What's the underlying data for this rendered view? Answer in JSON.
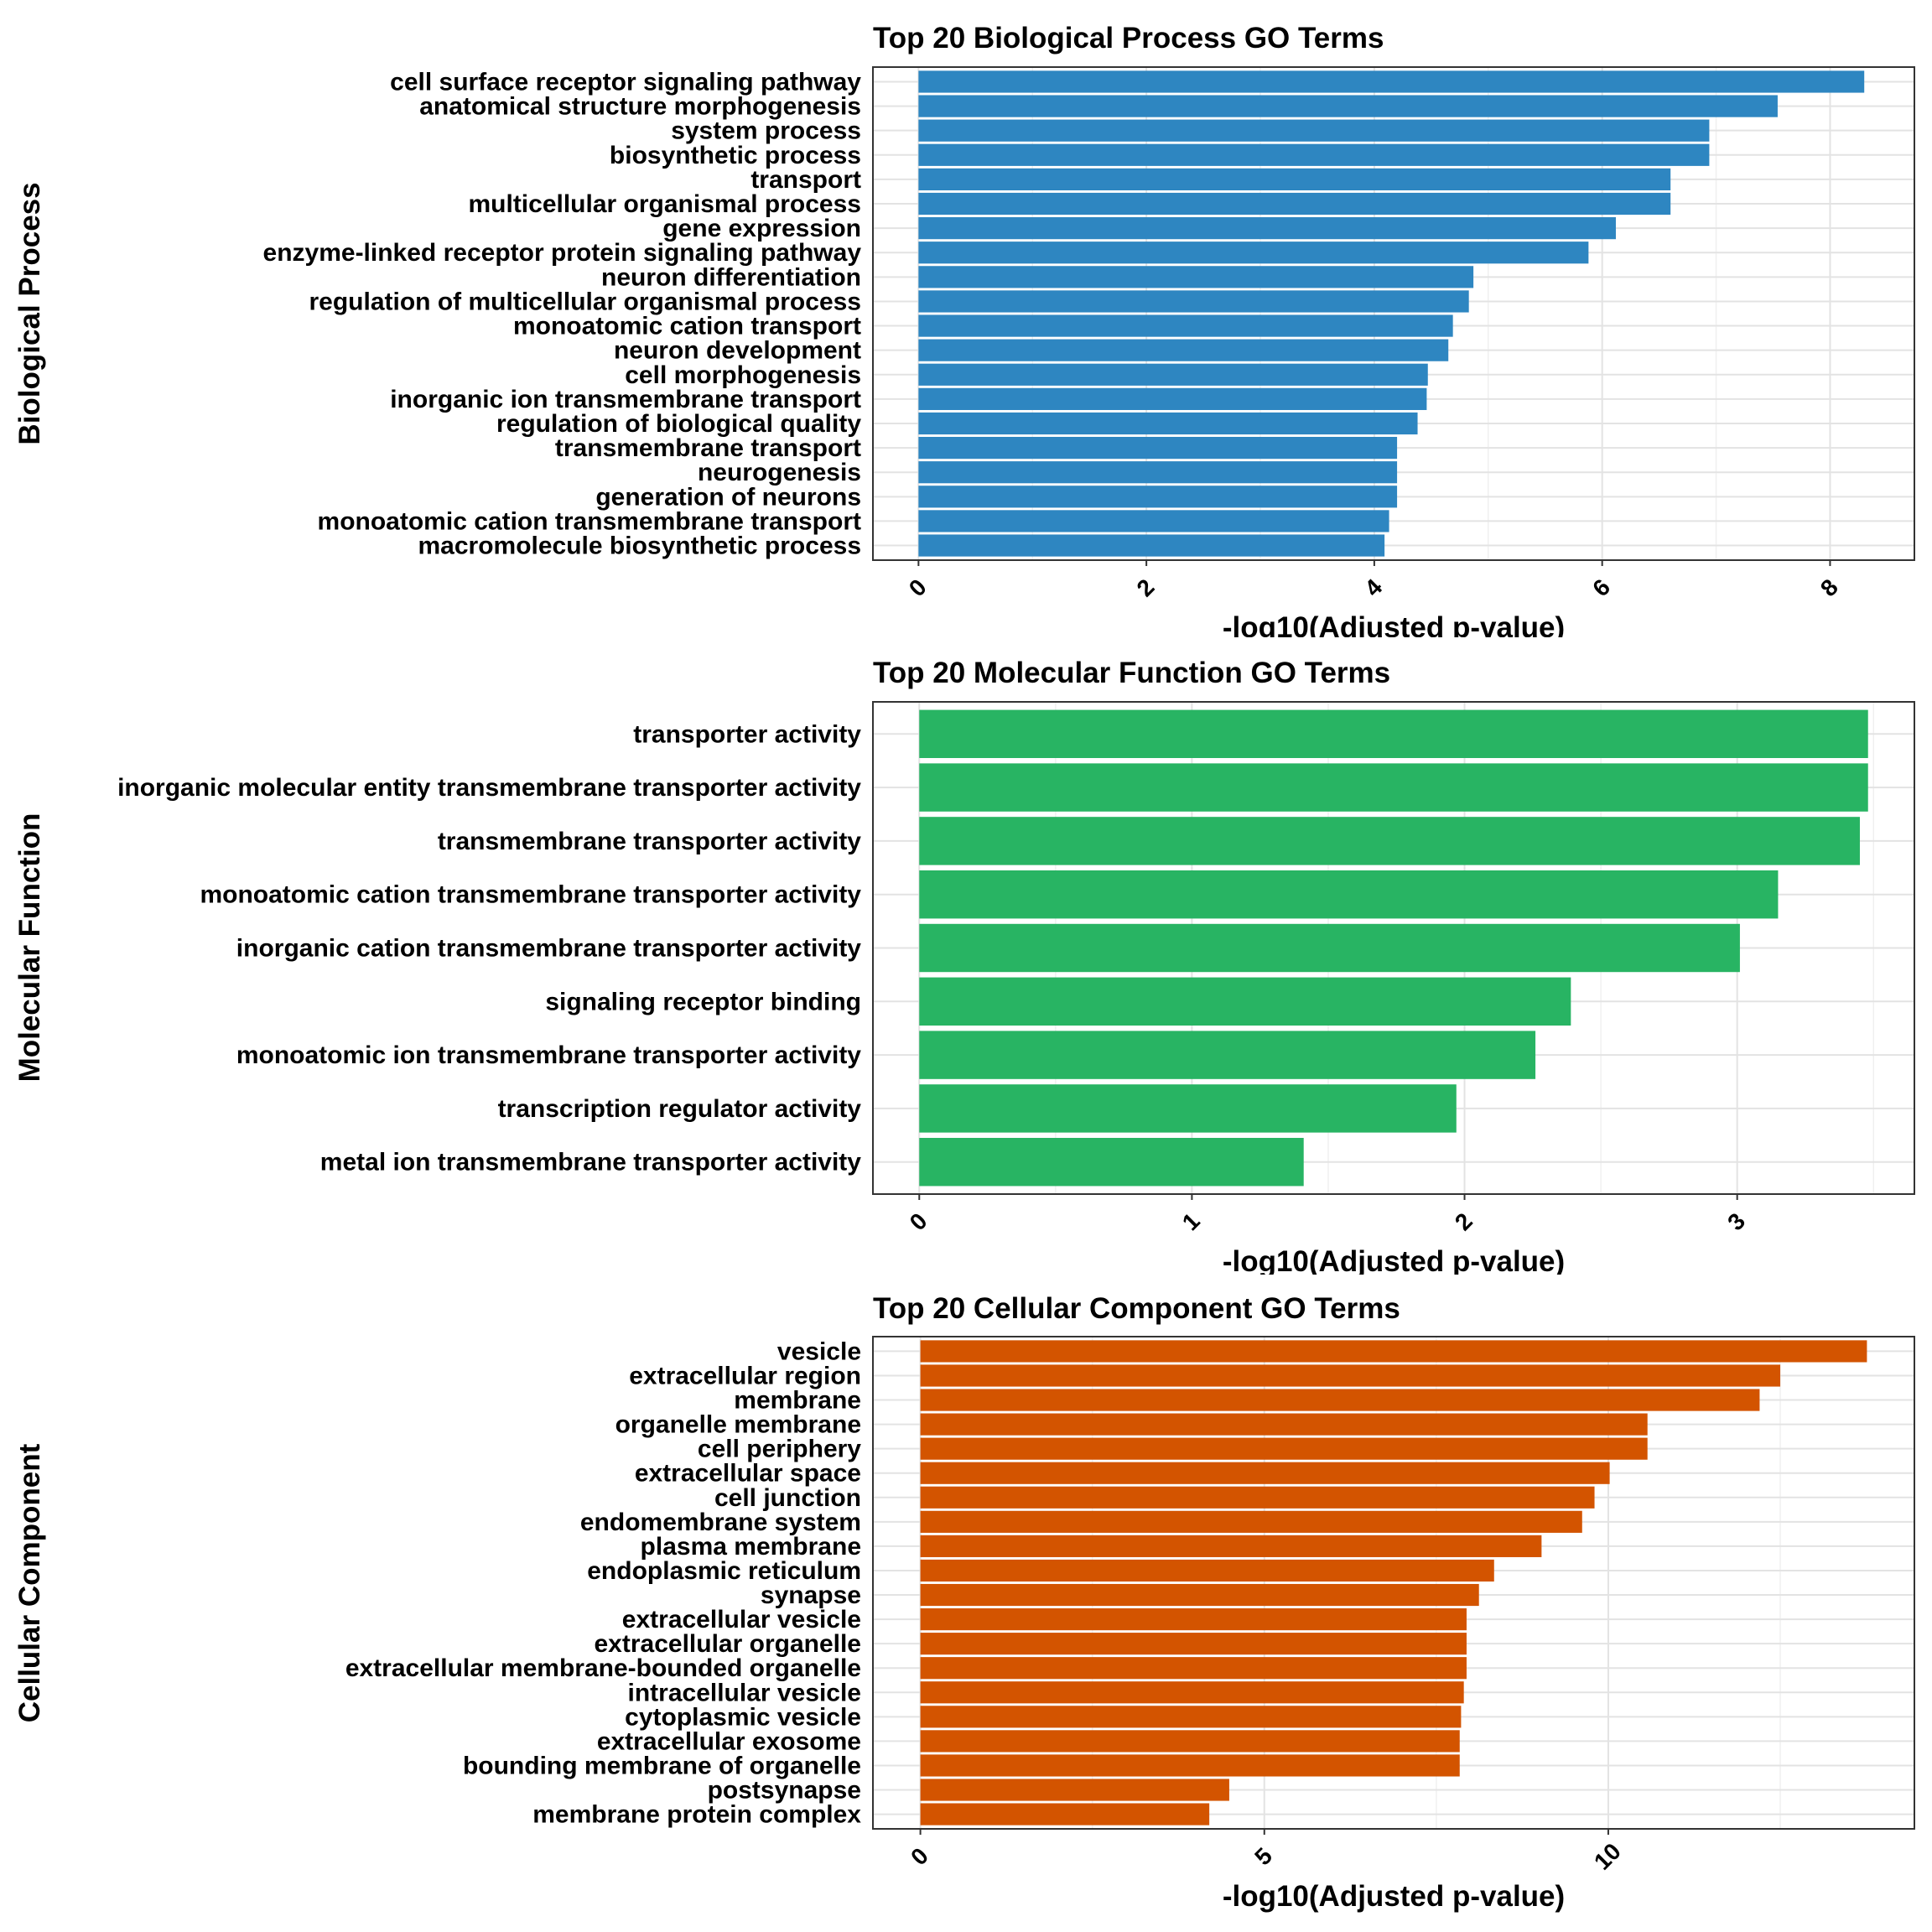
{
  "chart_data": [
    {
      "type": "bar",
      "orientation": "horizontal",
      "title": "Top 20 Biological Process GO Terms",
      "facet_label": "Biological Process",
      "xlabel": "-log10(Adjusted p-value)",
      "ylabel": "",
      "color": "#2E86C1",
      "xlim": [
        -0.4,
        8.74
      ],
      "xticks": [
        0,
        2,
        4,
        6,
        8
      ],
      "grid": true,
      "categories": [
        "cell surface receptor signaling pathway",
        "anatomical structure morphogenesis",
        "system process",
        "biosynthetic process",
        "transport",
        "multicellular organismal process",
        "gene expression",
        "enzyme-linked receptor protein signaling pathway",
        "neuron differentiation",
        "regulation of multicellular organismal process",
        "monoatomic cation transport",
        "neuron development",
        "cell morphogenesis",
        "inorganic ion transmembrane transport",
        "regulation of biological quality",
        "transmembrane transport",
        "neurogenesis",
        "generation of neurons",
        "monoatomic cation transmembrane transport",
        "macromolecule biosynthetic process"
      ],
      "values": [
        8.3,
        7.54,
        6.94,
        6.94,
        6.6,
        6.6,
        6.12,
        5.88,
        4.87,
        4.83,
        4.69,
        4.65,
        4.47,
        4.46,
        4.38,
        4.2,
        4.2,
        4.2,
        4.13,
        4.09
      ]
    },
    {
      "type": "bar",
      "orientation": "horizontal",
      "title": "Top 20 Molecular Function GO Terms",
      "facet_label": "Molecular Function",
      "xlabel": "-log10(Adjusted p-value)",
      "ylabel": "",
      "color": "#28B463",
      "xlim": [
        -0.17,
        3.65
      ],
      "xticks": [
        0,
        1,
        2,
        3
      ],
      "grid": true,
      "categories": [
        "transporter activity",
        "inorganic molecular entity transmembrane transporter activity",
        "transmembrane transporter activity",
        "monoatomic cation transmembrane transporter activity",
        "inorganic cation transmembrane transporter activity",
        "signaling receptor binding",
        "monoatomic ion transmembrane transporter activity",
        "transcription regulator activity",
        "metal ion transmembrane transporter activity"
      ],
      "values": [
        3.48,
        3.48,
        3.45,
        3.15,
        3.01,
        2.39,
        2.26,
        1.97,
        1.41
      ]
    },
    {
      "type": "bar",
      "orientation": "horizontal",
      "title": "Top 20 Cellular Component GO Terms",
      "facet_label": "Cellular Component",
      "xlabel": "-log10(Adjusted p-value)",
      "ylabel": "",
      "color": "#D35400",
      "xlim": [
        -0.69,
        14.45
      ],
      "xticks": [
        0,
        5,
        10
      ],
      "grid": true,
      "categories": [
        "vesicle",
        "extracellular region",
        "membrane",
        "organelle membrane",
        "cell periphery",
        "extracellular space",
        "cell junction",
        "endomembrane system",
        "plasma membrane",
        "endoplasmic reticulum",
        "synapse",
        "extracellular vesicle",
        "extracellular organelle",
        "extracellular membrane-bounded organelle",
        "intracellular vesicle",
        "cytoplasmic vesicle",
        "extracellular exosome",
        "bounding membrane of organelle",
        "postsynapse",
        "membrane protein complex"
      ],
      "values": [
        13.76,
        12.5,
        12.2,
        10.57,
        10.57,
        10.02,
        9.8,
        9.62,
        9.03,
        8.34,
        8.12,
        7.94,
        7.94,
        7.94,
        7.9,
        7.86,
        7.84,
        7.84,
        4.49,
        4.2
      ]
    }
  ]
}
